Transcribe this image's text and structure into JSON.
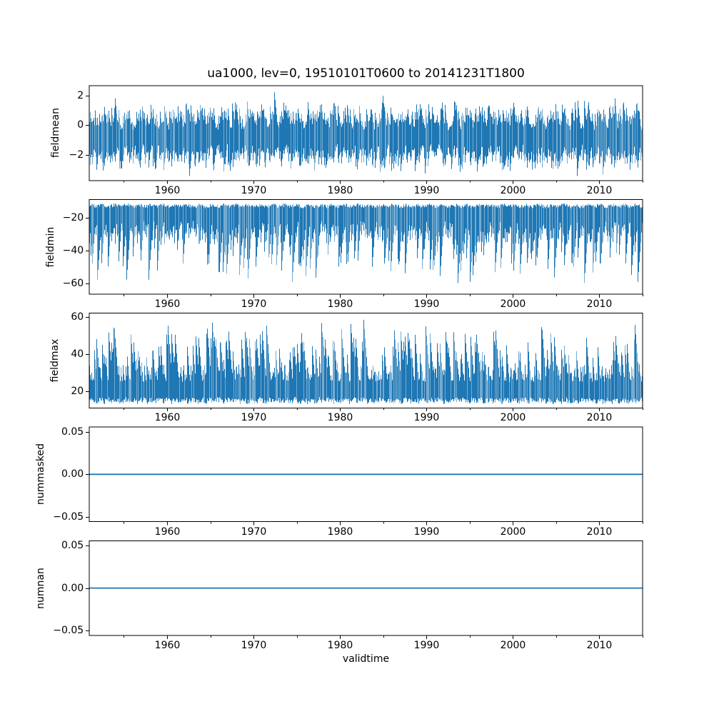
{
  "figure": {
    "title": "ua1000, lev=0, 19510101T0600 to 20141231T1800",
    "background": "#ffffff",
    "line_color": "#1f77b4",
    "axis_color": "#000000"
  },
  "x_axis": {
    "label": "validtime",
    "range": [
      1951,
      2015
    ],
    "major_ticks": [
      {
        "value": 1960,
        "label": "1960"
      },
      {
        "value": 1970,
        "label": "1970"
      },
      {
        "value": 1980,
        "label": "1980"
      },
      {
        "value": 1990,
        "label": "1990"
      },
      {
        "value": 2000,
        "label": "2000"
      },
      {
        "value": 2010,
        "label": "2010"
      }
    ],
    "minor_ticks": [
      1955,
      1965,
      1975,
      1985,
      1995,
      2005,
      2015
    ]
  },
  "chart_data": [
    {
      "type": "line",
      "name": "fieldmean",
      "ylabel": "fieldmean",
      "ylim": [
        -3.72,
        2.65
      ],
      "yticks": [
        {
          "value": 2,
          "label": "2"
        },
        {
          "value": 0,
          "label": "0"
        },
        {
          "value": -2,
          "label": "−2"
        }
      ],
      "summary": {
        "dense_band": [
          -2.3,
          0.6
        ],
        "extremes": [
          -3.4,
          2.45
        ],
        "mean_level": -0.7
      },
      "series": {
        "kind": "noisy_band",
        "seed": 101,
        "hi": {
          "base": -0.05,
          "amp": 1.35,
          "pow": 1.9,
          "spike_prob": 0.05,
          "spike_amp": 0.75
        },
        "lo": {
          "base": -1.55,
          "amp": 1.35,
          "pow": 1.9,
          "spike_prob": 0.05,
          "spike_amp": 0.75
        },
        "wobble": 0.28,
        "decay": 0.5,
        "clamp": [
          -3.42,
          2.45
        ]
      }
    },
    {
      "type": "line",
      "name": "fieldmin",
      "ylabel": "fieldmin",
      "ylim": [
        -66.5,
        -8.8
      ],
      "yticks": [
        {
          "value": -20,
          "label": "−20"
        },
        {
          "value": -40,
          "label": "−40"
        },
        {
          "value": -60,
          "label": "−60"
        }
      ],
      "summary": {
        "dense_band": [
          -35,
          -12
        ],
        "extremes": [
          -63.5,
          -11.5
        ],
        "spikes_down_to": -60
      },
      "series": {
        "kind": "noisy_band",
        "seed": 202,
        "hi": {
          "base": -13.9,
          "amp": 2.3,
          "pow": 0.8,
          "spike_prob": 0,
          "spike_amp": 0
        },
        "lo": {
          "base": -22,
          "amp": 14,
          "pow": 1.2,
          "spike_prob": 0.2,
          "spike_amp": 19
        },
        "wobble": 0.5,
        "decay": 6,
        "clamp": [
          -63.5,
          -11.4
        ]
      }
    },
    {
      "type": "line",
      "name": "fieldmax",
      "ylabel": "fieldmax",
      "ylim": [
        11,
        62
      ],
      "yticks": [
        {
          "value": 60,
          "label": "60"
        },
        {
          "value": 40,
          "label": "40"
        },
        {
          "value": 20,
          "label": "20"
        }
      ],
      "summary": {
        "dense_band": [
          15,
          33
        ],
        "extremes": [
          13.2,
          60.3
        ],
        "spikes_up_to": 60
      },
      "series": {
        "kind": "noisy_band",
        "seed": 303,
        "hi": {
          "base": 25.5,
          "amp": 9,
          "pow": 2,
          "spike_prob": 0.2,
          "spike_amp": 18
        },
        "lo": {
          "base": 16.5,
          "amp": 3,
          "pow": 1,
          "spike_prob": 0,
          "spike_amp": 0
        },
        "wobble": 0.5,
        "decay": 5,
        "clamp": [
          13.2,
          60.3
        ]
      }
    },
    {
      "type": "line",
      "name": "nummasked",
      "ylabel": "nummasked",
      "ylim": [
        -0.0555,
        0.0555
      ],
      "yticks": [
        {
          "value": 0.05,
          "label": "0.05"
        },
        {
          "value": 0,
          "label": "0.00"
        },
        {
          "value": -0.05,
          "label": "−0.05"
        }
      ],
      "summary": {
        "constant_value": 0.0
      },
      "series": {
        "kind": "constant",
        "value": 0.0
      }
    },
    {
      "type": "line",
      "name": "numnan",
      "ylabel": "numnan",
      "ylim": [
        -0.0555,
        0.0555
      ],
      "yticks": [
        {
          "value": 0.05,
          "label": "0.05"
        },
        {
          "value": 0,
          "label": "0.00"
        },
        {
          "value": -0.05,
          "label": "−0.05"
        }
      ],
      "summary": {
        "constant_value": 0.0
      },
      "series": {
        "kind": "constant",
        "value": 0.0
      }
    }
  ]
}
